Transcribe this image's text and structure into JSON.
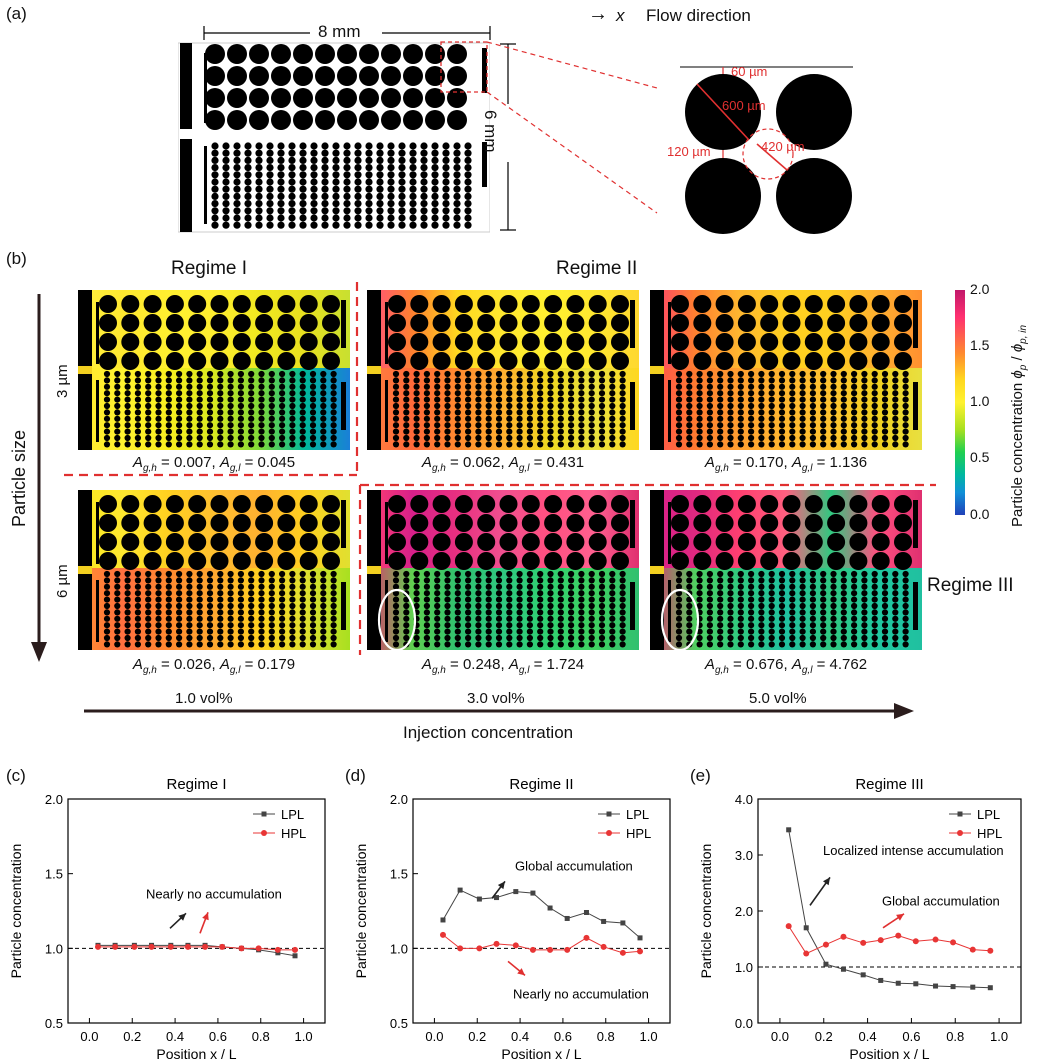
{
  "panels": {
    "a": "(a)",
    "b": "(b)",
    "c": "(c)",
    "d": "(d)",
    "e": "(e)"
  },
  "schematic": {
    "width_label": "8 mm",
    "height_label": "6 mm",
    "flow_arrow": "→",
    "flow_x": "x",
    "flow_label": "Flow direction",
    "dim_60": "60 µm",
    "dim_600": "600 µm",
    "dim_120": "120 µm",
    "dim_420": "420 µm"
  },
  "heatmaps": {
    "regime1": "Regime I",
    "regime2": "Regime II",
    "regime3": "Regime III",
    "row1_label": "3 µm",
    "row2_label": "6 µm",
    "particle_size": "Particle size",
    "injection": "Injection concentration",
    "vol1": "1.0 vol%",
    "vol2": "3.0 vol%",
    "vol3": "5.0 vol%",
    "captions": [
      {
        "agh": "0.007",
        "agl": "0.045"
      },
      {
        "agh": "0.062",
        "agl": "0.431"
      },
      {
        "agh": "0.170",
        "agl": "1.136"
      },
      {
        "agh": "0.026",
        "agl": "0.179"
      },
      {
        "agh": "0.248",
        "agl": "1.724"
      },
      {
        "agh": "0.676",
        "agl": "4.762"
      }
    ],
    "colorbar": {
      "ticks": [
        "2.0",
        "1.5",
        "1.0",
        "0.5",
        "0.0"
      ],
      "label": "Particle concentration"
    }
  },
  "chart_data": [
    {
      "type": "line",
      "title": "Regime I",
      "xlabel": "Position x / L",
      "ylabel": "Particle concentration",
      "xlim": [
        -0.1,
        1.1
      ],
      "ylim": [
        0.5,
        2.0
      ],
      "xticks": [
        "0.0",
        "0.2",
        "0.4",
        "0.6",
        "0.8",
        "1.0"
      ],
      "yticks": [
        "0.5",
        "1.0",
        "1.5",
        "2.0"
      ],
      "legend_position": "top-right",
      "x": [
        0.04,
        0.12,
        0.21,
        0.29,
        0.38,
        0.46,
        0.54,
        0.62,
        0.71,
        0.79,
        0.88,
        0.96
      ],
      "series": [
        {
          "name": "LPL",
          "color": "#444444",
          "marker": "square",
          "values": [
            1.02,
            1.02,
            1.02,
            1.02,
            1.02,
            1.02,
            1.02,
            1.01,
            1.0,
            0.99,
            0.97,
            0.95
          ]
        },
        {
          "name": "HPL",
          "color": "#e83535",
          "marker": "circle",
          "values": [
            1.01,
            1.01,
            1.01,
            1.01,
            1.01,
            1.01,
            1.01,
            1.01,
            1.0,
            1.0,
            0.99,
            0.99
          ]
        }
      ],
      "reference_line": 1.0,
      "annotations": [
        "Nearly no accumulation"
      ]
    },
    {
      "type": "line",
      "title": "Regime II",
      "xlabel": "Position x / L",
      "ylabel": "Particle concentration",
      "xlim": [
        -0.1,
        1.1
      ],
      "ylim": [
        0.5,
        2.0
      ],
      "xticks": [
        "0.0",
        "0.2",
        "0.4",
        "0.6",
        "0.8",
        "1.0"
      ],
      "yticks": [
        "0.5",
        "1.0",
        "1.5",
        "2.0"
      ],
      "legend_position": "top-right",
      "x": [
        0.04,
        0.12,
        0.21,
        0.29,
        0.38,
        0.46,
        0.54,
        0.62,
        0.71,
        0.79,
        0.88,
        0.96
      ],
      "series": [
        {
          "name": "LPL",
          "color": "#444444",
          "marker": "square",
          "values": [
            1.19,
            1.39,
            1.33,
            1.34,
            1.38,
            1.37,
            1.27,
            1.2,
            1.24,
            1.18,
            1.17,
            1.07
          ]
        },
        {
          "name": "HPL",
          "color": "#e83535",
          "marker": "circle",
          "values": [
            1.09,
            1.0,
            1.0,
            1.03,
            1.02,
            0.99,
            0.99,
            0.99,
            1.07,
            1.01,
            0.97,
            0.98
          ]
        }
      ],
      "reference_line": 1.0,
      "annotations": [
        "Global accumulation",
        "Nearly no accumulation"
      ]
    },
    {
      "type": "line",
      "title": "Regime III",
      "xlabel": "Position x / L",
      "ylabel": "Particle concentration",
      "xlim": [
        -0.1,
        1.1
      ],
      "ylim": [
        0.0,
        4.0
      ],
      "xticks": [
        "0.0",
        "0.2",
        "0.4",
        "0.6",
        "0.8",
        "1.0"
      ],
      "yticks": [
        "0.0",
        "1.0",
        "2.0",
        "3.0",
        "4.0"
      ],
      "legend_position": "top-right",
      "x": [
        0.04,
        0.12,
        0.21,
        0.29,
        0.38,
        0.46,
        0.54,
        0.62,
        0.71,
        0.79,
        0.88,
        0.96
      ],
      "series": [
        {
          "name": "LPL",
          "color": "#444444",
          "marker": "square",
          "values": [
            3.45,
            1.7,
            1.05,
            0.96,
            0.86,
            0.76,
            0.71,
            0.7,
            0.66,
            0.65,
            0.64,
            0.63
          ]
        },
        {
          "name": "HPL",
          "color": "#e83535",
          "marker": "circle",
          "values": [
            1.73,
            1.24,
            1.4,
            1.54,
            1.43,
            1.48,
            1.56,
            1.46,
            1.49,
            1.44,
            1.31,
            1.29
          ]
        }
      ],
      "reference_line": 1.0,
      "annotations": [
        "Localized intense accumulation",
        "Global accumulation"
      ]
    }
  ]
}
